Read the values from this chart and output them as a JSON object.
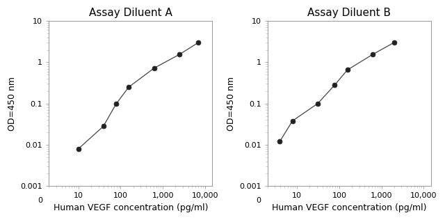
{
  "panel_A": {
    "title": "Assay Diluent A",
    "x": [
      10,
      39,
      78,
      156,
      625,
      2500,
      7000
    ],
    "y": [
      0.008,
      0.028,
      0.097,
      0.25,
      0.72,
      1.55,
      3.0
    ],
    "xlabel": "Human VEGF concentration (pg/ml)",
    "ylabel": "OD=450 nm",
    "xlim": [
      2,
      15000
    ],
    "ylim": [
      0.001,
      10
    ],
    "xticks": [
      10,
      100,
      1000,
      10000
    ],
    "xtick_labels": [
      "10",
      "100",
      "1,000",
      "10,000"
    ]
  },
  "panel_B": {
    "title": "Assay Diluent B",
    "x": [
      3.9,
      7.8,
      31,
      78,
      156,
      625,
      2000
    ],
    "y": [
      0.012,
      0.038,
      0.1,
      0.28,
      0.65,
      1.55,
      3.0
    ],
    "xlabel": "Human VEGF concentration (pg/ml)",
    "ylabel": "OD=450 nm",
    "xlim": [
      2,
      15000
    ],
    "ylim": [
      0.001,
      10
    ],
    "xticks": [
      10,
      100,
      1000,
      10000
    ],
    "xtick_labels": [
      "10",
      "100",
      "1,000",
      "10,000"
    ]
  },
  "line_color": "#444444",
  "marker_color": "#222222",
  "marker_size": 5,
  "title_fontsize": 11,
  "label_fontsize": 9,
  "tick_fontsize": 8,
  "background_color": "#ffffff"
}
